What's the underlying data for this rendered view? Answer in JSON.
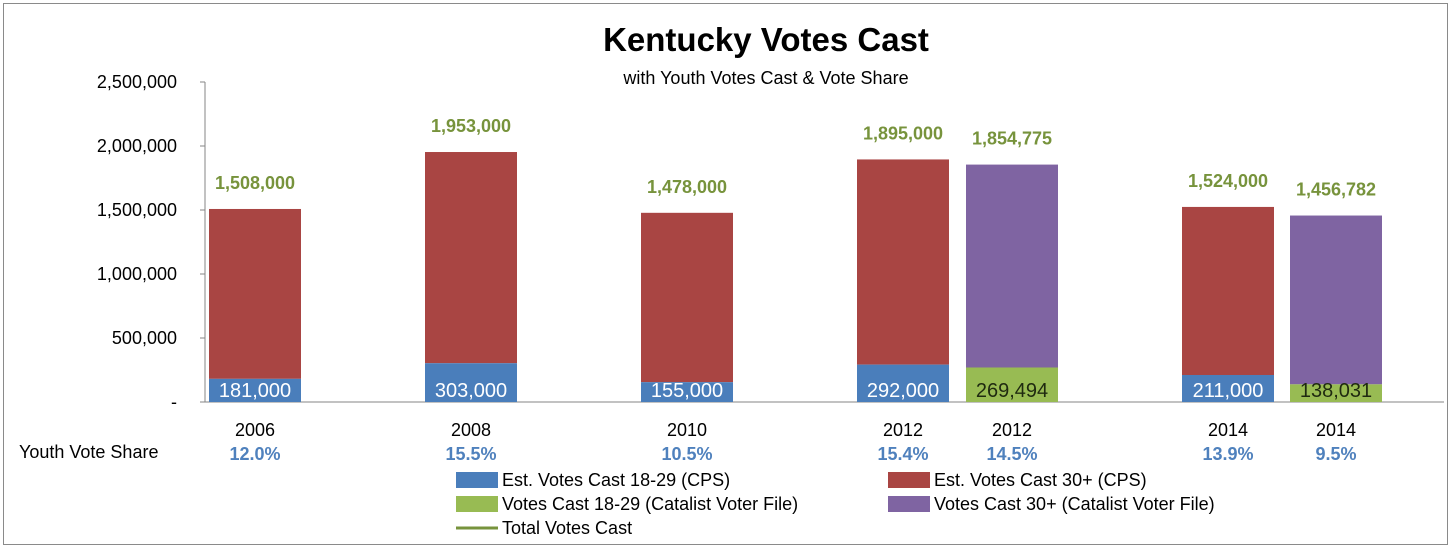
{
  "chart_data": {
    "type": "bar",
    "title": "Kentucky Votes Cast",
    "subtitle": "with Youth Votes Cast & Vote Share",
    "xlabel": "",
    "ylabel": "",
    "ylim": [
      0,
      2500000
    ],
    "y_ticks": [
      {
        "value": 0,
        "label": "-"
      },
      {
        "value": 500000,
        "label": "500,000"
      },
      {
        "value": 1000000,
        "label": "1,000,000"
      },
      {
        "value": 1500000,
        "label": "1,500,000"
      },
      {
        "value": 2000000,
        "label": "2,000,000"
      },
      {
        "value": 2500000,
        "label": "2,500,000"
      }
    ],
    "grid": false,
    "legend_position": "bottom",
    "share_row_label": "Youth Vote Share",
    "colors": {
      "cps_18_29": "#4a7ebb",
      "cps_30_plus": "#a94543",
      "catalist_18_29": "#98bb53",
      "catalist_30_plus": "#7f64a2",
      "total_line": "#77933c",
      "total_label": "#77933c",
      "share_label": "#4f81bd"
    },
    "bars": [
      {
        "category": "2006",
        "source": "cps",
        "youth": 181000,
        "youth_label": "181,000",
        "total": 1508000,
        "total_label": "1,508,000",
        "share": "12.0%"
      },
      {
        "category": "2008",
        "source": "cps",
        "youth": 303000,
        "youth_label": "303,000",
        "total": 1953000,
        "total_label": "1,953,000",
        "share": "15.5%"
      },
      {
        "category": "2010",
        "source": "cps",
        "youth": 155000,
        "youth_label": "155,000",
        "total": 1478000,
        "total_label": "1,478,000",
        "share": "10.5%"
      },
      {
        "category": "2012",
        "source": "cps",
        "youth": 292000,
        "youth_label": "292,000",
        "total": 1895000,
        "total_label": "1,895,000",
        "share": "15.4%"
      },
      {
        "category": "2012",
        "source": "catalist",
        "youth": 269494,
        "youth_label": "269,494",
        "total": 1854775,
        "total_label": "1,854,775",
        "share": "14.5%"
      },
      {
        "category": "2014",
        "source": "cps",
        "youth": 211000,
        "youth_label": "211,000",
        "total": 1524000,
        "total_label": "1,524,000",
        "share": "13.9%"
      },
      {
        "category": "2014",
        "source": "catalist",
        "youth": 138031,
        "youth_label": "138,031",
        "total": 1456782,
        "total_label": "1,456,782",
        "share": "9.5%"
      }
    ],
    "series": [
      {
        "name": "Est. Votes Cast 18-29 (CPS)",
        "color_key": "cps_18_29",
        "legend_type": "box"
      },
      {
        "name": "Est. Votes Cast 30+ (CPS)",
        "color_key": "cps_30_plus",
        "legend_type": "box"
      },
      {
        "name": "Votes Cast 18-29 (Catalist Voter File)",
        "color_key": "catalist_18_29",
        "legend_type": "box"
      },
      {
        "name": "Votes Cast 30+ (Catalist Voter File)",
        "color_key": "catalist_30_plus",
        "legend_type": "box"
      },
      {
        "name": "Total Votes Cast",
        "color_key": "total_line",
        "legend_type": "line"
      }
    ]
  }
}
